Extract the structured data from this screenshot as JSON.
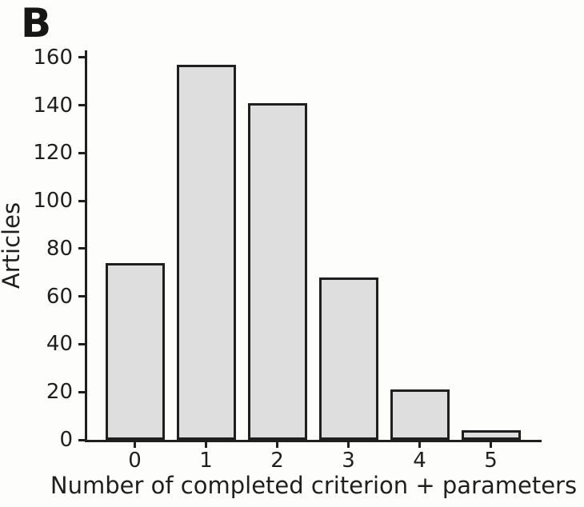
{
  "panel_label": "B",
  "chart_data": {
    "type": "bar",
    "title": "",
    "categories": [
      "0",
      "1",
      "2",
      "3",
      "4",
      "5"
    ],
    "values": [
      74,
      157,
      141,
      68,
      21,
      4
    ],
    "xlabel": "Number of completed criterion + parameters",
    "ylabel": "Articles",
    "y_ticks": [
      0,
      20,
      40,
      60,
      80,
      100,
      120,
      140,
      160
    ],
    "ylim": [
      0,
      163
    ],
    "grid": false,
    "legend": "none",
    "colors": {
      "bar_fill": "#dedede",
      "bar_border": "#1f1f1f",
      "axis": "#1f1f1f",
      "background": "#fdfdfb",
      "text": "#1f1f1f"
    }
  }
}
